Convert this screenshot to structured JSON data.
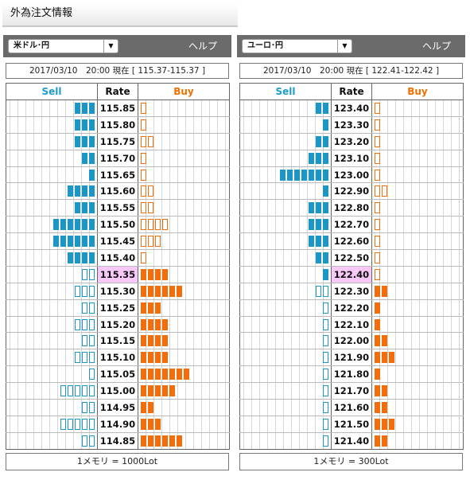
{
  "page": {
    "title": "外為注文情報"
  },
  "colors": {
    "sell": "#1a97c6",
    "buy": "#f36d0a",
    "current_rate_bg": "#f8c8f8",
    "bar": "#6b6b6b"
  },
  "panels": [
    {
      "pair": "米ドル･円",
      "help": "ヘルプ",
      "timestamp": "2017/03/10　20:00 現在 [ 115.37-115.37 ]",
      "headers": {
        "sell": "Sell",
        "rate": "Rate",
        "buy": "Buy"
      },
      "current_rate": "115.35",
      "rows": [
        {
          "rate": "115.85",
          "sell_filled": 3,
          "sell_outline": 0,
          "buy_filled": 0,
          "buy_outline": 1
        },
        {
          "rate": "115.80",
          "sell_filled": 3,
          "sell_outline": 0,
          "buy_filled": 0,
          "buy_outline": 1
        },
        {
          "rate": "115.75",
          "sell_filled": 3,
          "sell_outline": 0,
          "buy_filled": 0,
          "buy_outline": 2
        },
        {
          "rate": "115.70",
          "sell_filled": 2,
          "sell_outline": 0,
          "buy_filled": 0,
          "buy_outline": 1
        },
        {
          "rate": "115.65",
          "sell_filled": 1,
          "sell_outline": 0,
          "buy_filled": 0,
          "buy_outline": 1
        },
        {
          "rate": "115.60",
          "sell_filled": 4,
          "sell_outline": 0,
          "buy_filled": 0,
          "buy_outline": 2
        },
        {
          "rate": "115.55",
          "sell_filled": 3,
          "sell_outline": 0,
          "buy_filled": 0,
          "buy_outline": 2
        },
        {
          "rate": "115.50",
          "sell_filled": 6,
          "sell_outline": 0,
          "buy_filled": 0,
          "buy_outline": 4
        },
        {
          "rate": "115.45",
          "sell_filled": 6,
          "sell_outline": 0,
          "buy_filled": 0,
          "buy_outline": 3
        },
        {
          "rate": "115.40",
          "sell_filled": 4,
          "sell_outline": 0,
          "buy_filled": 0,
          "buy_outline": 1
        },
        {
          "rate": "115.35",
          "sell_filled": 0,
          "sell_outline": 2,
          "buy_filled": 4,
          "buy_outline": 0
        },
        {
          "rate": "115.30",
          "sell_filled": 0,
          "sell_outline": 3,
          "buy_filled": 6,
          "buy_outline": 0
        },
        {
          "rate": "115.25",
          "sell_filled": 0,
          "sell_outline": 2,
          "buy_filled": 3,
          "buy_outline": 0
        },
        {
          "rate": "115.20",
          "sell_filled": 0,
          "sell_outline": 3,
          "buy_filled": 4,
          "buy_outline": 0
        },
        {
          "rate": "115.15",
          "sell_filled": 0,
          "sell_outline": 2,
          "buy_filled": 4,
          "buy_outline": 0
        },
        {
          "rate": "115.10",
          "sell_filled": 0,
          "sell_outline": 3,
          "buy_filled": 4,
          "buy_outline": 0
        },
        {
          "rate": "115.05",
          "sell_filled": 0,
          "sell_outline": 1,
          "buy_filled": 7,
          "buy_outline": 0
        },
        {
          "rate": "115.00",
          "sell_filled": 0,
          "sell_outline": 5,
          "buy_filled": 5,
          "buy_outline": 0
        },
        {
          "rate": "114.95",
          "sell_filled": 0,
          "sell_outline": 2,
          "buy_filled": 2,
          "buy_outline": 0
        },
        {
          "rate": "114.90",
          "sell_filled": 0,
          "sell_outline": 5,
          "buy_filled": 3,
          "buy_outline": 0
        },
        {
          "rate": "114.85",
          "sell_filled": 0,
          "sell_outline": 2,
          "buy_filled": 6,
          "buy_outline": 0
        }
      ],
      "unit": "1メモリ = 1000Lot"
    },
    {
      "pair": "ユーロ･円",
      "help": "ヘルプ",
      "timestamp": "2017/03/10　20:00 現在 [ 122.41-122.42 ]",
      "headers": {
        "sell": "Sell",
        "rate": "Rate",
        "buy": "Buy"
      },
      "current_rate": "122.40",
      "rows": [
        {
          "rate": "123.40",
          "sell_filled": 2,
          "sell_outline": 0,
          "buy_filled": 0,
          "buy_outline": 1
        },
        {
          "rate": "123.30",
          "sell_filled": 1,
          "sell_outline": 0,
          "buy_filled": 0,
          "buy_outline": 1
        },
        {
          "rate": "123.20",
          "sell_filled": 2,
          "sell_outline": 0,
          "buy_filled": 0,
          "buy_outline": 1
        },
        {
          "rate": "123.10",
          "sell_filled": 3,
          "sell_outline": 0,
          "buy_filled": 0,
          "buy_outline": 1
        },
        {
          "rate": "123.00",
          "sell_filled": 7,
          "sell_outline": 0,
          "buy_filled": 0,
          "buy_outline": 1
        },
        {
          "rate": "122.90",
          "sell_filled": 1,
          "sell_outline": 0,
          "buy_filled": 0,
          "buy_outline": 2
        },
        {
          "rate": "122.80",
          "sell_filled": 3,
          "sell_outline": 0,
          "buy_filled": 0,
          "buy_outline": 1
        },
        {
          "rate": "122.70",
          "sell_filled": 3,
          "sell_outline": 0,
          "buy_filled": 0,
          "buy_outline": 1
        },
        {
          "rate": "122.60",
          "sell_filled": 3,
          "sell_outline": 0,
          "buy_filled": 0,
          "buy_outline": 1
        },
        {
          "rate": "122.50",
          "sell_filled": 2,
          "sell_outline": 0,
          "buy_filled": 0,
          "buy_outline": 1
        },
        {
          "rate": "122.40",
          "sell_filled": 1,
          "sell_outline": 0,
          "buy_filled": 0,
          "buy_outline": 1
        },
        {
          "rate": "122.30",
          "sell_filled": 0,
          "sell_outline": 2,
          "buy_filled": 2,
          "buy_outline": 0
        },
        {
          "rate": "122.20",
          "sell_filled": 0,
          "sell_outline": 1,
          "buy_filled": 1,
          "buy_outline": 0
        },
        {
          "rate": "122.10",
          "sell_filled": 0,
          "sell_outline": 1,
          "buy_filled": 1,
          "buy_outline": 0
        },
        {
          "rate": "122.00",
          "sell_filled": 0,
          "sell_outline": 1,
          "buy_filled": 2,
          "buy_outline": 0
        },
        {
          "rate": "121.90",
          "sell_filled": 0,
          "sell_outline": 1,
          "buy_filled": 3,
          "buy_outline": 0
        },
        {
          "rate": "121.80",
          "sell_filled": 0,
          "sell_outline": 1,
          "buy_filled": 1,
          "buy_outline": 0
        },
        {
          "rate": "121.70",
          "sell_filled": 0,
          "sell_outline": 1,
          "buy_filled": 2,
          "buy_outline": 0
        },
        {
          "rate": "121.60",
          "sell_filled": 0,
          "sell_outline": 1,
          "buy_filled": 2,
          "buy_outline": 0
        },
        {
          "rate": "121.50",
          "sell_filled": 0,
          "sell_outline": 1,
          "buy_filled": 3,
          "buy_outline": 0
        },
        {
          "rate": "121.40",
          "sell_filled": 0,
          "sell_outline": 1,
          "buy_filled": 2,
          "buy_outline": 0
        }
      ],
      "unit": "1メモリ = 300Lot"
    }
  ]
}
